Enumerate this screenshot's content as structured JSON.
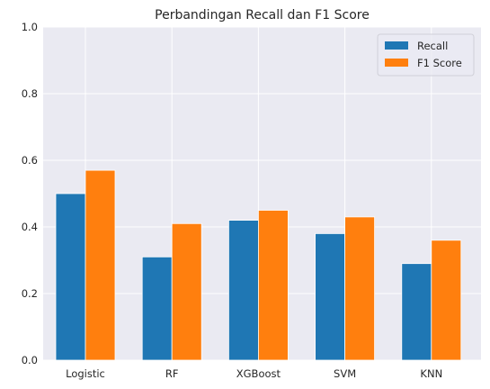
{
  "chart_data": {
    "type": "bar",
    "title": "Perbandingan Recall dan F1 Score",
    "xlabel": "",
    "ylabel": "",
    "categories": [
      "Logistic",
      "RF",
      "XGBoost",
      "SVM",
      "KNN"
    ],
    "series": [
      {
        "name": "Recall",
        "values": [
          0.5,
          0.31,
          0.42,
          0.38,
          0.29
        ],
        "color": "#1f77b4"
      },
      {
        "name": "F1 Score",
        "values": [
          0.57,
          0.41,
          0.45,
          0.43,
          0.36
        ],
        "color": "#ff7f0e"
      }
    ],
    "ylim": [
      0,
      1.0
    ],
    "yticks": [
      "0.0",
      "0.2",
      "0.4",
      "0.6",
      "0.8",
      "1.0"
    ],
    "grid": true,
    "legend_position": "top-right",
    "background_color": "#eaeaf2"
  }
}
